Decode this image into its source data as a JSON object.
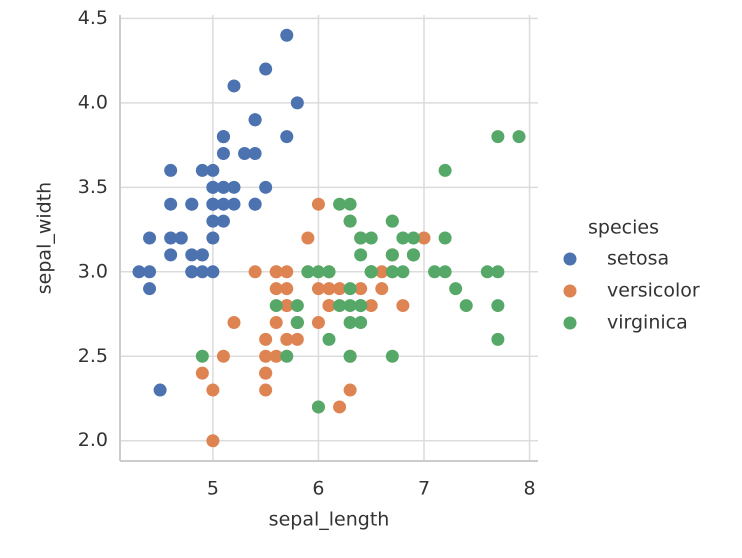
{
  "chart_data": {
    "type": "scatter",
    "xlabel": "sepal_length",
    "ylabel": "sepal_width",
    "xlim": [
      4.12,
      8.08
    ],
    "ylim": [
      1.88,
      4.52
    ],
    "xticks": [
      5,
      6,
      7,
      8
    ],
    "yticks": [
      {
        "value": 2,
        "label": "2.0"
      },
      {
        "value": 2.5,
        "label": "2.5"
      },
      {
        "value": 3,
        "label": "3.0"
      },
      {
        "value": 3.5,
        "label": "3.5"
      },
      {
        "value": 4,
        "label": "4.0"
      },
      {
        "value": 4.5,
        "label": "4.5"
      }
    ],
    "grid": true,
    "legend_title": "species",
    "legend_position": "right",
    "series": [
      {
        "name": "setosa",
        "color": "#4c72b0",
        "x": [
          5.1,
          4.9,
          4.7,
          4.6,
          5.0,
          5.4,
          4.6,
          5.0,
          4.4,
          4.9,
          5.4,
          4.8,
          4.8,
          4.3,
          5.8,
          5.7,
          5.4,
          5.1,
          5.7,
          5.1,
          5.4,
          5.1,
          4.6,
          5.1,
          4.8,
          5.0,
          5.0,
          5.2,
          5.2,
          4.7,
          4.8,
          5.4,
          5.2,
          5.5,
          4.9,
          5.0,
          5.5,
          4.9,
          4.4,
          5.1,
          5.0,
          4.5,
          4.4,
          5.0,
          5.1,
          4.8,
          5.1,
          4.6,
          5.3,
          5.0
        ],
        "y": [
          3.5,
          3.0,
          3.2,
          3.1,
          3.6,
          3.9,
          3.4,
          3.4,
          2.9,
          3.1,
          3.7,
          3.4,
          3.0,
          3.0,
          4.0,
          4.4,
          3.9,
          3.5,
          3.8,
          3.8,
          3.4,
          3.7,
          3.6,
          3.3,
          3.4,
          3.0,
          3.4,
          3.5,
          3.4,
          3.2,
          3.1,
          3.4,
          4.1,
          4.2,
          3.1,
          3.2,
          3.5,
          3.6,
          3.0,
          3.4,
          3.5,
          2.3,
          3.2,
          3.5,
          3.8,
          3.0,
          3.8,
          3.2,
          3.7,
          3.3
        ]
      },
      {
        "name": "versicolor",
        "color": "#dd8452",
        "x": [
          7.0,
          6.4,
          6.9,
          5.5,
          6.5,
          5.7,
          6.3,
          4.9,
          6.6,
          5.2,
          5.0,
          5.9,
          6.0,
          6.1,
          5.6,
          6.7,
          5.6,
          5.8,
          6.2,
          5.6,
          5.9,
          6.1,
          6.3,
          6.1,
          6.4,
          6.6,
          6.8,
          6.7,
          6.0,
          5.7,
          5.5,
          5.5,
          5.8,
          6.0,
          5.4,
          6.0,
          6.7,
          6.3,
          5.6,
          5.5,
          5.5,
          6.1,
          5.8,
          5.0,
          5.6,
          5.7,
          5.7,
          6.2,
          5.1,
          5.7
        ],
        "y": [
          3.2,
          3.2,
          3.1,
          2.3,
          2.8,
          2.8,
          3.3,
          2.4,
          2.9,
          2.7,
          2.0,
          3.0,
          2.2,
          2.9,
          2.9,
          3.1,
          3.0,
          2.7,
          2.2,
          2.5,
          3.2,
          2.8,
          2.5,
          2.8,
          2.9,
          3.0,
          2.8,
          3.0,
          2.9,
          2.6,
          2.4,
          2.4,
          2.7,
          2.7,
          3.0,
          3.4,
          3.1,
          2.3,
          3.0,
          2.5,
          2.6,
          3.0,
          2.6,
          2.3,
          2.7,
          3.0,
          2.9,
          2.9,
          2.5,
          2.8
        ]
      },
      {
        "name": "virginica",
        "color": "#55a868",
        "x": [
          6.3,
          5.8,
          7.1,
          6.3,
          6.5,
          7.6,
          4.9,
          7.3,
          6.7,
          7.2,
          6.5,
          6.4,
          6.8,
          5.7,
          5.8,
          6.4,
          6.5,
          7.7,
          7.7,
          6.0,
          6.9,
          5.6,
          7.7,
          6.3,
          6.7,
          7.2,
          6.2,
          6.1,
          6.4,
          7.2,
          7.4,
          7.9,
          6.4,
          6.3,
          6.1,
          7.7,
          6.3,
          6.4,
          6.0,
          6.9,
          6.7,
          6.9,
          5.8,
          6.8,
          6.7,
          6.7,
          6.3,
          6.5,
          6.2,
          5.9
        ],
        "y": [
          3.3,
          2.7,
          3.0,
          2.9,
          3.0,
          3.0,
          2.5,
          2.9,
          2.5,
          3.6,
          3.2,
          2.7,
          3.0,
          2.5,
          2.8,
          3.2,
          3.0,
          3.8,
          2.6,
          2.2,
          3.2,
          2.8,
          2.8,
          2.7,
          3.3,
          3.2,
          2.8,
          3.0,
          2.8,
          3.0,
          2.8,
          3.8,
          2.8,
          2.8,
          2.6,
          3.0,
          3.4,
          3.1,
          3.0,
          3.1,
          3.1,
          3.1,
          2.7,
          3.2,
          3.3,
          3.0,
          2.5,
          3.0,
          3.4,
          3.0
        ]
      }
    ]
  }
}
